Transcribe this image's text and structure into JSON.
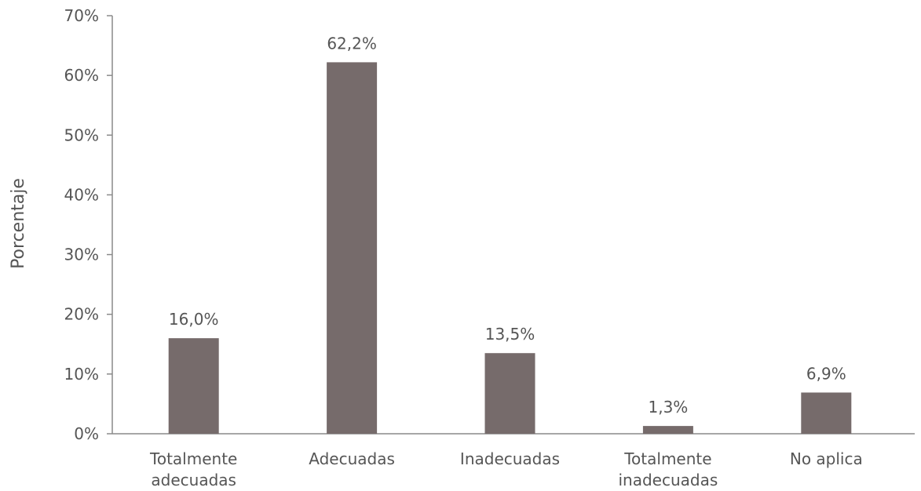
{
  "chart_data": {
    "type": "bar",
    "categories": [
      [
        "Totalmente",
        "adecuadas"
      ],
      [
        "Adecuadas"
      ],
      [
        "Inadecuadas"
      ],
      [
        "Totalmente",
        "inadecuadas"
      ],
      [
        "No aplica"
      ]
    ],
    "values": [
      16.0,
      62.2,
      13.5,
      1.3,
      6.9
    ],
    "data_labels": [
      "16,0%",
      "62,2%",
      "13,5%",
      "1,3%",
      "6,9%"
    ],
    "y_ticks": [
      0,
      10,
      20,
      30,
      40,
      50,
      60,
      70
    ],
    "y_tick_labels": [
      "0%",
      "10%",
      "20%",
      "30%",
      "40%",
      "50%",
      "60%",
      "70%"
    ],
    "ylim": [
      0,
      70
    ],
    "xlabel": "",
    "ylabel": "Porcentaje",
    "bar_color": "#766b6b",
    "grid": false,
    "legend": "none"
  }
}
